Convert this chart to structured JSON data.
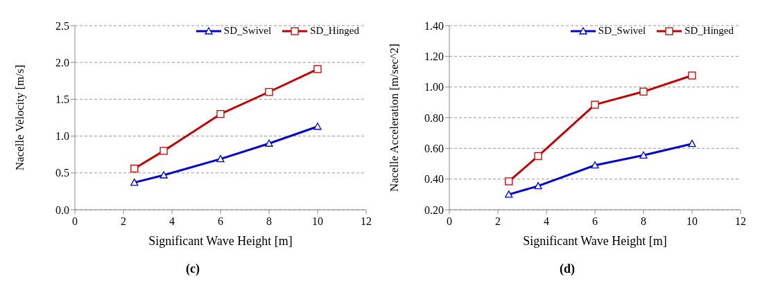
{
  "chart_data": [
    {
      "type": "line",
      "title": "(c)",
      "xlabel": "Significant Wave Height  [m]",
      "ylabel": "Nacelle  Velocity [m/s]",
      "x": [
        2.45,
        3.66,
        6,
        8,
        10
      ],
      "series": [
        {
          "name": "SD_Swivel",
          "color": "#0000cc",
          "marker": "triangle",
          "values": [
            0.37,
            0.47,
            0.69,
            0.9,
            1.13
          ]
        },
        {
          "name": "SD_Hinged",
          "color": "#c00000",
          "marker": "square",
          "values": [
            0.56,
            0.8,
            1.3,
            1.6,
            1.91
          ]
        }
      ],
      "xlim": [
        0,
        12
      ],
      "xticks": [
        0,
        2,
        4,
        6,
        8,
        10,
        12
      ],
      "ylim": [
        0,
        2.5
      ],
      "yticks": [
        {
          "value": 0,
          "label": "0.0"
        },
        0.5,
        {
          "value": 1,
          "label": "1.0"
        },
        1.5,
        {
          "value": 2,
          "label": "2.0"
        },
        2.5
      ],
      "grid": "y",
      "legend": "top right",
      "line_style": "solid"
    },
    {
      "type": "line",
      "title": "(d)",
      "xlabel": "Significant Wave Height  [m]",
      "ylabel": "Nacelle  Acceleration [m/sec^2]",
      "x": [
        2.45,
        3.66,
        6,
        8,
        10
      ],
      "series": [
        {
          "name": "SD_Swivel",
          "color": "#0000cc",
          "marker": "triangle",
          "values": [
            0.3,
            0.355,
            0.49,
            0.555,
            0.63
          ]
        },
        {
          "name": "SD_Hinged",
          "color": "#c00000",
          "marker": "square",
          "values": [
            0.385,
            0.55,
            0.885,
            0.97,
            1.075
          ]
        }
      ],
      "xlim": [
        0,
        12
      ],
      "xticks": [
        0,
        2,
        4,
        6,
        8,
        10,
        12
      ],
      "ylim": [
        0.2,
        1.4
      ],
      "yticks": [
        {
          "value": 0.2,
          "label": "0.20"
        },
        {
          "value": 0.4,
          "label": "0.40"
        },
        {
          "value": 0.6,
          "label": "0.60"
        },
        {
          "value": 0.8,
          "label": "0.80"
        },
        {
          "value": 1,
          "label": "1.00"
        },
        {
          "value": 1.2,
          "label": "1.20"
        },
        {
          "value": 1.4,
          "label": "1.40"
        }
      ],
      "grid": "y",
      "legend": "top right",
      "line_style": "solid"
    }
  ]
}
